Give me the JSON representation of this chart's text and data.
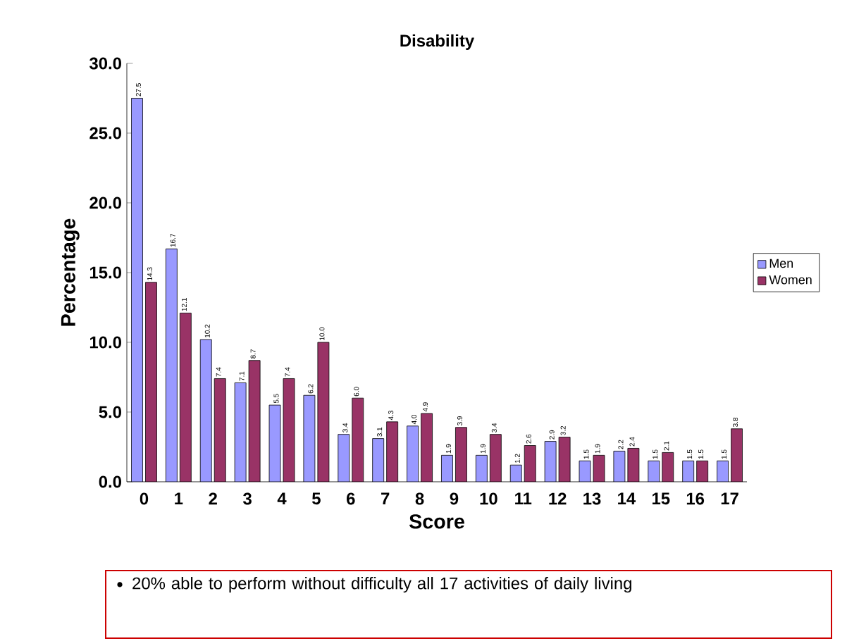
{
  "chart_data": {
    "type": "bar",
    "title": "Disability",
    "xlabel": "Score",
    "ylabel": "Percentage",
    "categories": [
      "0",
      "1",
      "2",
      "3",
      "4",
      "5",
      "6",
      "7",
      "8",
      "9",
      "10",
      "11",
      "12",
      "13",
      "14",
      "15",
      "16",
      "17"
    ],
    "series": [
      {
        "name": "Men",
        "color": "#9999ff",
        "values": [
          27.5,
          16.7,
          10.2,
          7.1,
          5.5,
          6.2,
          3.4,
          3.1,
          4.0,
          1.9,
          1.9,
          1.2,
          2.9,
          1.5,
          2.2,
          1.5,
          1.5,
          1.5
        ],
        "value_labels": [
          "27.5",
          "16.7",
          "10.2",
          "7.1",
          "5.5",
          "6.2",
          "3.4",
          "3.1",
          "4.0",
          "1.9",
          "1.9",
          "1.2",
          "2.9",
          "1.5",
          "2.2",
          "1.5",
          "1.5",
          "1.5"
        ]
      },
      {
        "name": "Women",
        "color": "#993366",
        "values": [
          14.3,
          12.1,
          7.4,
          8.7,
          7.4,
          10.0,
          6.0,
          4.3,
          4.9,
          3.9,
          3.4,
          2.6,
          3.2,
          1.9,
          2.4,
          2.1,
          1.5,
          3.8
        ],
        "value_labels": [
          "14.3",
          "12.1",
          "7.4",
          "8.7",
          "7.4",
          "10.0",
          "6.0",
          "4.3",
          "4.9",
          "3.9",
          "3.4",
          "2.6",
          "3.2",
          "1.9",
          "2.4",
          "2.1",
          "1.5",
          "3.8"
        ]
      }
    ],
    "ylim": [
      0,
      30
    ],
    "yticks": [
      {
        "value": 0,
        "label": "0.0"
      },
      {
        "value": 5,
        "label": "5.0"
      },
      {
        "value": 10,
        "label": "10.0"
      },
      {
        "value": 15,
        "label": "15.0"
      },
      {
        "value": 20,
        "label": "20.0"
      },
      {
        "value": 25,
        "label": "25.0"
      },
      {
        "value": 30,
        "label": "30.0"
      }
    ],
    "legend": "right",
    "annotations": [
      "20% able to perform without difficulty all 17 activities of daily living"
    ]
  }
}
